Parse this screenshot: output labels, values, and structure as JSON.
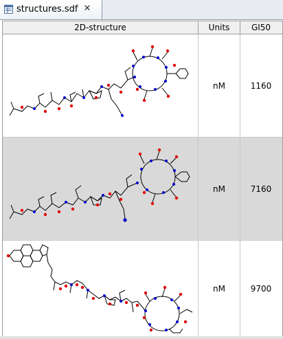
{
  "tab": {
    "label": "structures.sdf",
    "icon": "sdf-file-icon",
    "close_icon": "close-icon"
  },
  "table": {
    "columns": [
      "2D-structure",
      "Units",
      "GI50"
    ],
    "rows": [
      {
        "units": "nM",
        "gi50": "1160",
        "structure": "peptide-macrocycle-structure"
      },
      {
        "units": "nM",
        "gi50": "7160",
        "structure": "peptide-macrocycle-structure"
      },
      {
        "units": "nM",
        "gi50": "9700",
        "structure": "steroid-peptide-macrocycle-structure"
      }
    ]
  },
  "colors": {
    "selected_row": "#d9d9d9",
    "oxygen": "#e00000",
    "nitrogen": "#0000cc"
  }
}
